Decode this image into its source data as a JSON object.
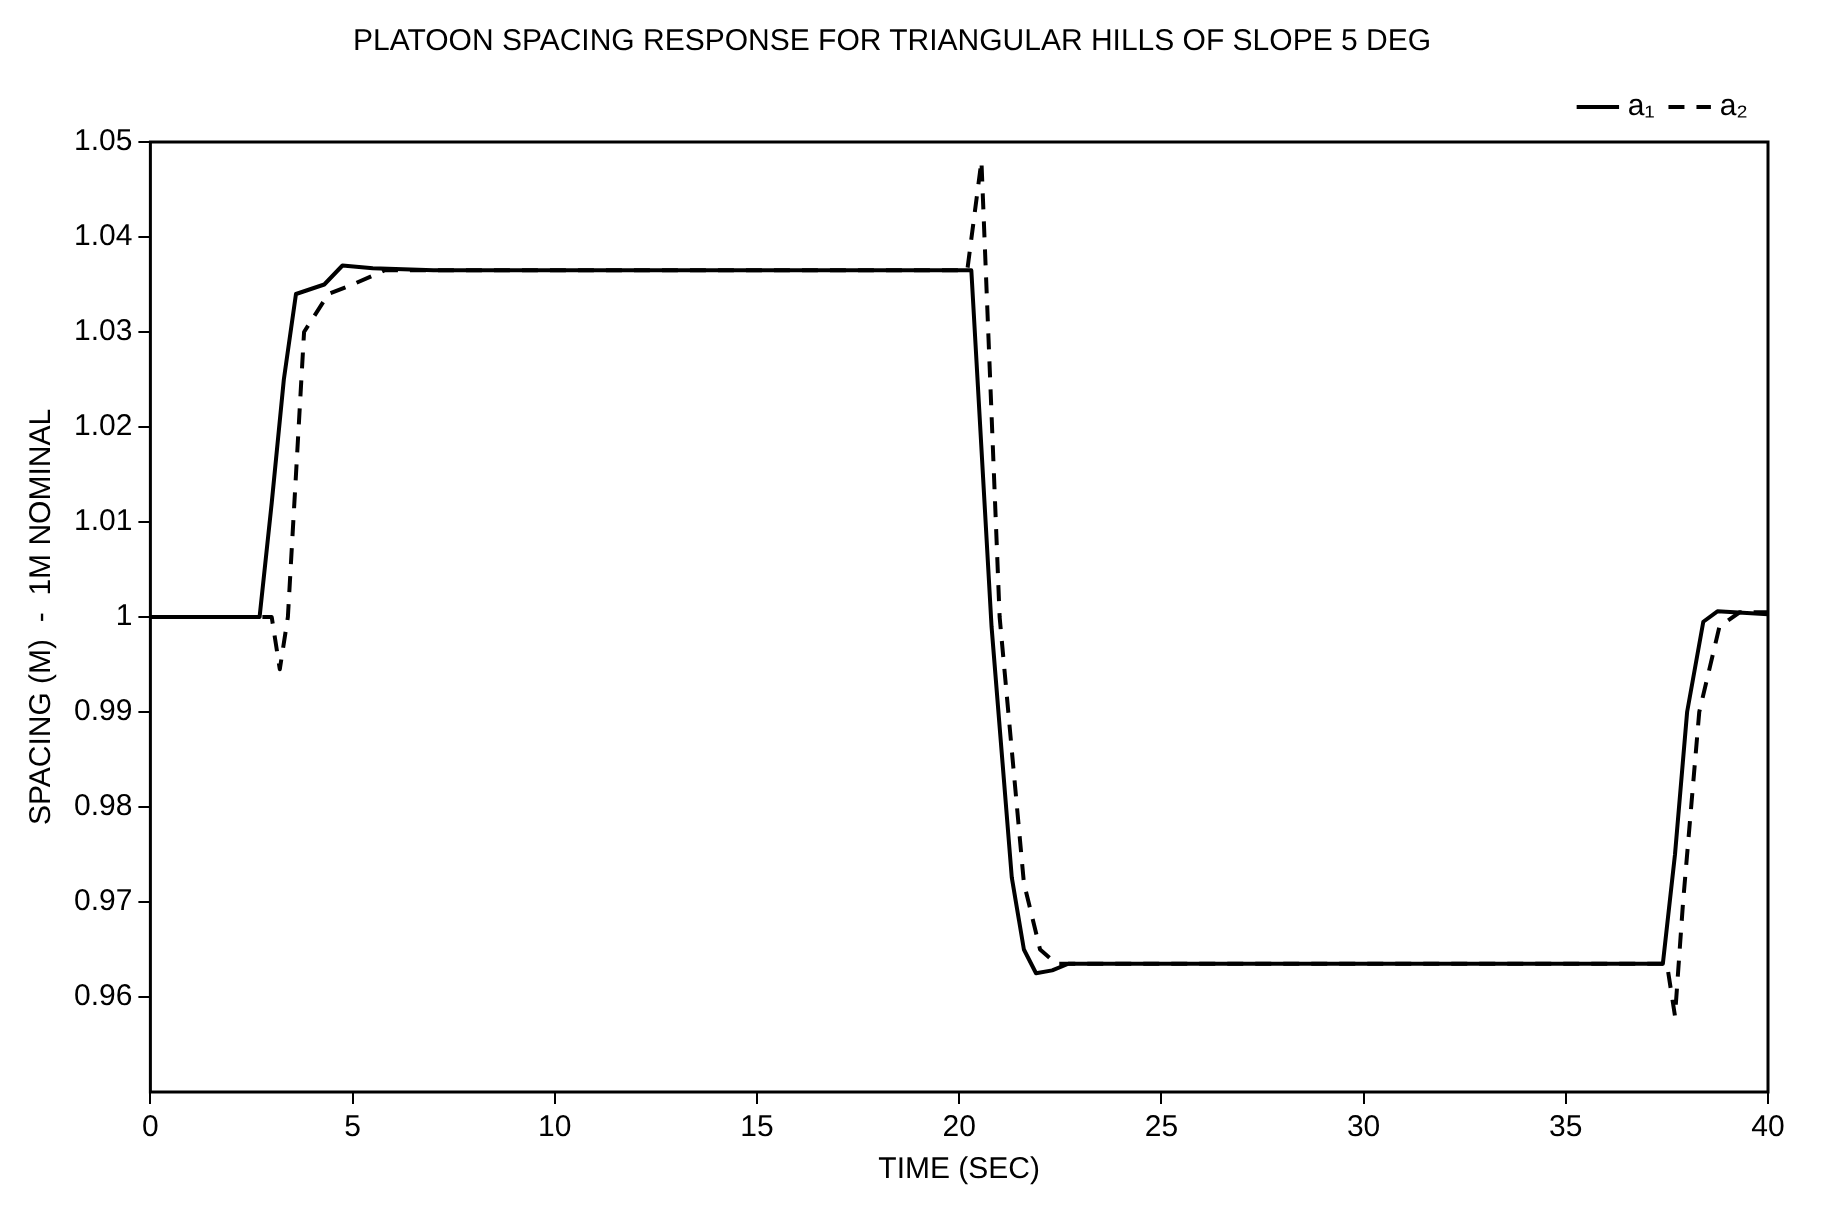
{
  "chart_data": {
    "type": "line",
    "title": "PLATOON SPACING RESPONSE FOR TRIANGULAR HILLS OF SLOPE 5 DEG",
    "xlabel": "TIME (SEC)",
    "ylabel": "SPACING (M)  -  1M NOMINAL",
    "xlim": [
      0,
      40
    ],
    "xticks": [
      0,
      5,
      10,
      15,
      20,
      25,
      30,
      35,
      40
    ],
    "ylim": [
      0.95,
      1.05
    ],
    "yticks": [
      0.96,
      0.97,
      0.98,
      0.99,
      1,
      1.01,
      1.02,
      1.03,
      1.04,
      1.05
    ],
    "grid": false,
    "legend": "top right",
    "marker": "none",
    "series": [
      {
        "name": "a₁",
        "color": "#000000",
        "line_style": "solid",
        "x": [
          0,
          2.7,
          3.0,
          3.3,
          3.6,
          4.3,
          4.75,
          5.5,
          7,
          20.3,
          20.8,
          21.3,
          21.6,
          21.9,
          22.3,
          22.7,
          37.4,
          37.7,
          38.0,
          38.4,
          38.75,
          40
        ],
        "values": [
          1,
          1,
          1.012,
          1.025,
          1.034,
          1.035,
          1.037,
          1.0367,
          1.0365,
          1.0365,
          0.999,
          0.9726,
          0.965,
          0.9625,
          0.9628,
          0.9635,
          0.9635,
          0.975,
          0.99,
          0.9995,
          1.0006,
          1.0003
        ]
      },
      {
        "name": "a₂",
        "color": "#000000",
        "line_style": "dashed",
        "x": [
          0,
          3.0,
          3.2,
          3.4,
          3.8,
          4.4,
          5.0,
          5.8,
          20.2,
          20.55,
          21.0,
          21.6,
          22.0,
          22.4,
          37.5,
          37.7,
          37.9,
          38.3,
          38.8,
          39.3,
          40
        ],
        "values": [
          1,
          1,
          0.9945,
          1.0,
          1.03,
          1.034,
          1.035,
          1.0365,
          1.0365,
          1.048,
          1.0,
          0.972,
          0.965,
          0.9635,
          0.9635,
          0.958,
          0.97,
          0.99,
          0.999,
          1.0005,
          1.0005
        ]
      }
    ]
  }
}
